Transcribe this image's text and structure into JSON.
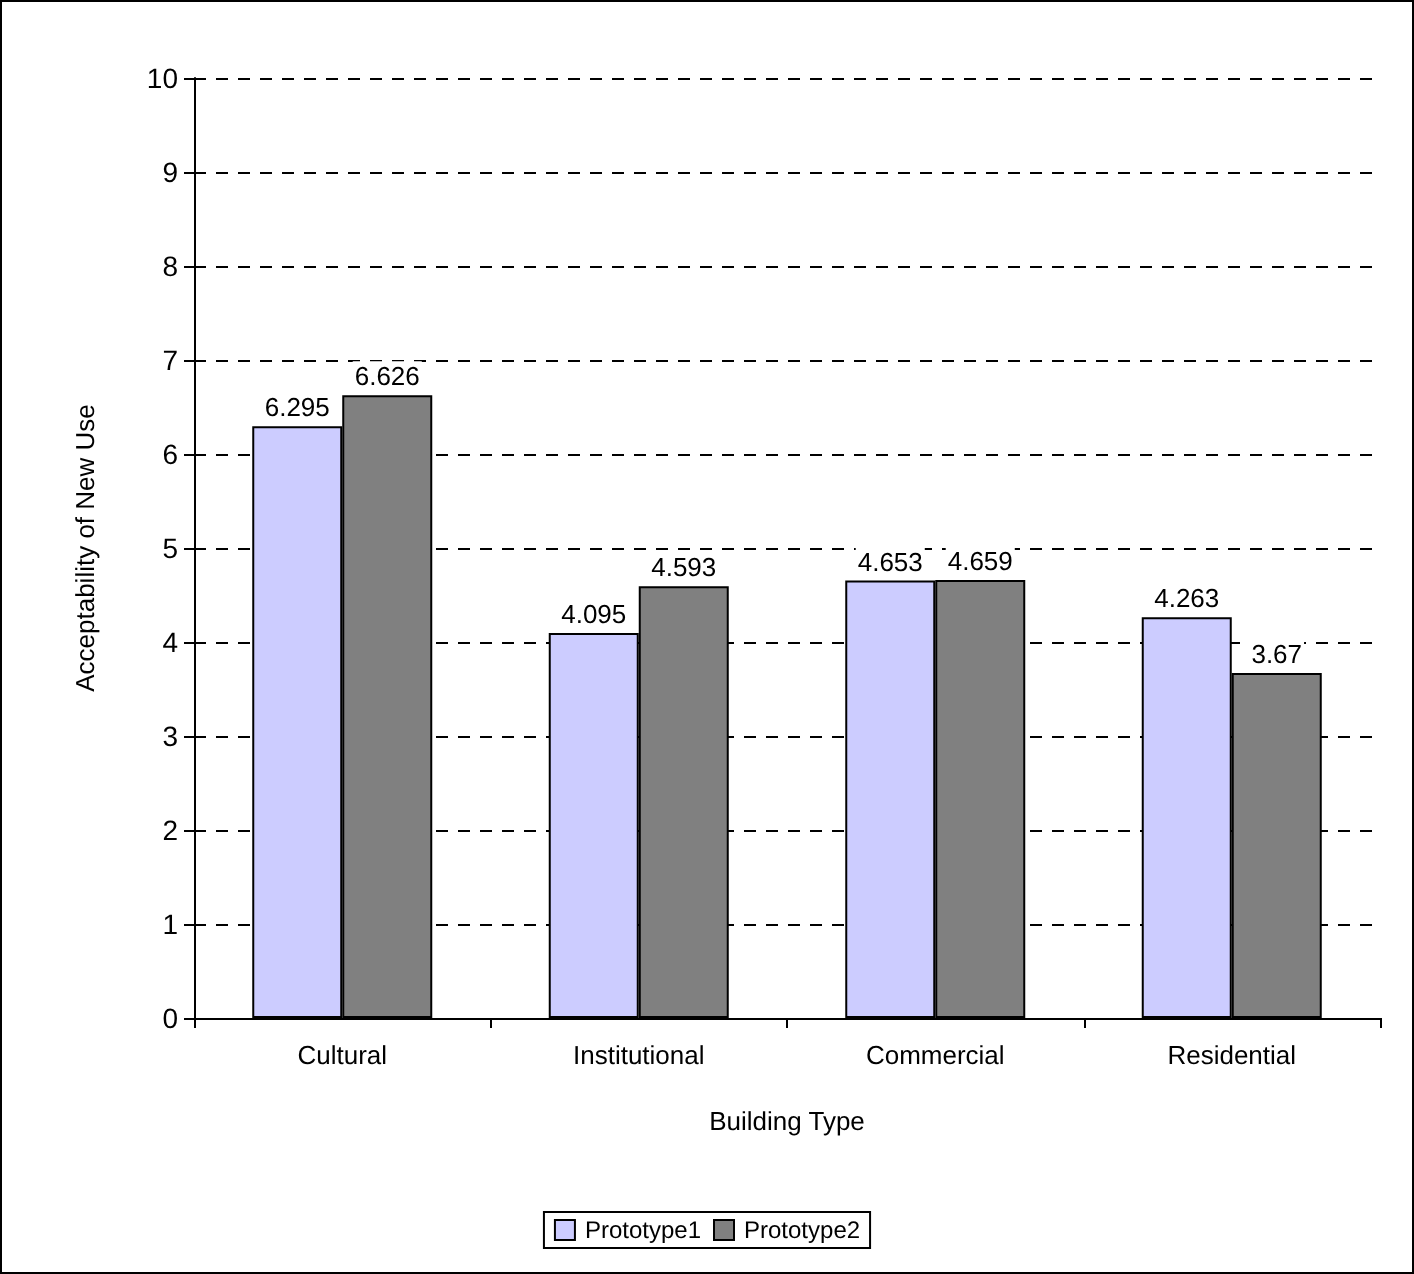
{
  "chart_data": {
    "type": "bar",
    "xlabel": "Building Type",
    "ylabel": "Acceptability of New Use",
    "categories": [
      "Cultural",
      "Institutional",
      "Commercial",
      "Residential"
    ],
    "series": [
      {
        "name": "Prototype1",
        "color": "#ccccff",
        "values": [
          6.295,
          4.095,
          4.653,
          4.263
        ]
      },
      {
        "name": "Prototype2",
        "color": "#808080",
        "values": [
          6.626,
          4.593,
          4.659,
          3.67
        ]
      }
    ],
    "ylim": [
      0,
      10
    ],
    "yticks": [
      0,
      1,
      2,
      3,
      4,
      5,
      6,
      7,
      8,
      9,
      10
    ],
    "grid": "y",
    "legend": "bottom",
    "data_labels": true
  }
}
